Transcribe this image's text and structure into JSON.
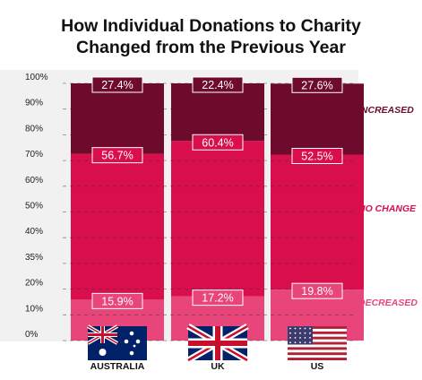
{
  "title_line1": "How Individual Donations to Charity",
  "title_line2": "Changed from the Previous Year",
  "chart_data": {
    "type": "bar",
    "stacked": true,
    "categories": [
      "AUSTRALIA",
      "UK",
      "US"
    ],
    "series": [
      {
        "name": "DECREASED",
        "values": [
          15.9,
          17.2,
          19.8
        ],
        "color": "#e8467a",
        "label_color": "#e8467a"
      },
      {
        "name": "NO CHANGE",
        "values": [
          56.7,
          60.4,
          52.5
        ],
        "color": "#d90f4d",
        "label_color": "#d90f4d"
      },
      {
        "name": "INCREASED",
        "values": [
          27.4,
          22.4,
          27.6
        ],
        "color": "#6e0a2b",
        "label_color": "#6e0a2b"
      }
    ],
    "y_ticks": [
      "0%",
      "10%",
      "20%",
      "35%",
      "40%",
      "50%",
      "60%",
      "70%",
      "80%",
      "90%",
      "100%"
    ],
    "ylim": [
      0,
      100
    ],
    "grid": "dashed",
    "legend": "right"
  }
}
